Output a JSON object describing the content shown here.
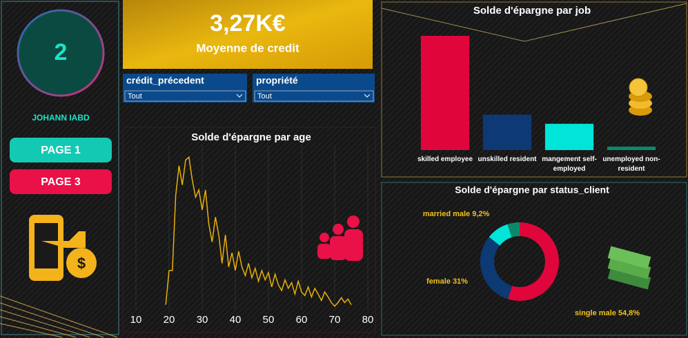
{
  "sidebar": {
    "badge": "2",
    "user": "JOHANN IABD",
    "buttons": [
      "PAGE 1",
      "PAGE 3"
    ]
  },
  "kpi": {
    "value": "3,27K€",
    "label": "Moyenne de credit"
  },
  "filters": [
    {
      "label": "crédit_précedent",
      "selected": "Tout"
    },
    {
      "label": "propriété",
      "selected": "Tout"
    }
  ],
  "chart_data": [
    {
      "type": "bar",
      "title": "Solde d'épargne par job",
      "categories": [
        "skilled employee",
        "unskilled resident",
        "mangement self-employed",
        "unemployed non-resident"
      ],
      "values": [
        100,
        31,
        23,
        3
      ],
      "colors": [
        "#e0063c",
        "#0d3a74",
        "#00e5d8",
        "#0b8a6a"
      ]
    },
    {
      "type": "line",
      "title": "Solde d'épargne par age",
      "color": "#e8b10a",
      "grid": true,
      "x": [
        19,
        20,
        21,
        22,
        23,
        24,
        25,
        26,
        27,
        28,
        29,
        30,
        31,
        32,
        33,
        34,
        35,
        36,
        37,
        38,
        39,
        40,
        41,
        42,
        43,
        44,
        45,
        46,
        47,
        48,
        49,
        50,
        51,
        52,
        53,
        54,
        55,
        56,
        57,
        58,
        59,
        60,
        61,
        62,
        63,
        64,
        65,
        66,
        67,
        68,
        69,
        70,
        71,
        72,
        73,
        74,
        75
      ],
      "values": [
        7,
        55,
        55,
        160,
        202,
        175,
        210,
        214,
        182,
        158,
        168,
        140,
        168,
        120,
        95,
        130,
        105,
        65,
        105,
        60,
        80,
        55,
        82,
        60,
        48,
        65,
        45,
        58,
        40,
        55,
        42,
        52,
        32,
        50,
        35,
        27,
        42,
        30,
        38,
        22,
        40,
        25,
        20,
        32,
        18,
        30,
        22,
        13,
        25,
        18,
        10,
        5,
        10,
        17,
        10,
        15,
        7
      ],
      "xlim": [
        6,
        82
      ],
      "ylim": [
        0,
        220
      ],
      "xticks": [
        10,
        20,
        30,
        40,
        50,
        60,
        70,
        80
      ]
    },
    {
      "type": "pie",
      "title": "Solde d'épargne par status_client",
      "values": [
        54.8,
        31,
        9.2,
        5
      ],
      "value_labels": [
        "single male 54,8%",
        "female 31%",
        "married male 9,2%",
        null
      ],
      "colors": [
        "#e0063c",
        "#0d3a74",
        "#00e5d8",
        "#0b8a6a"
      ]
    }
  ]
}
